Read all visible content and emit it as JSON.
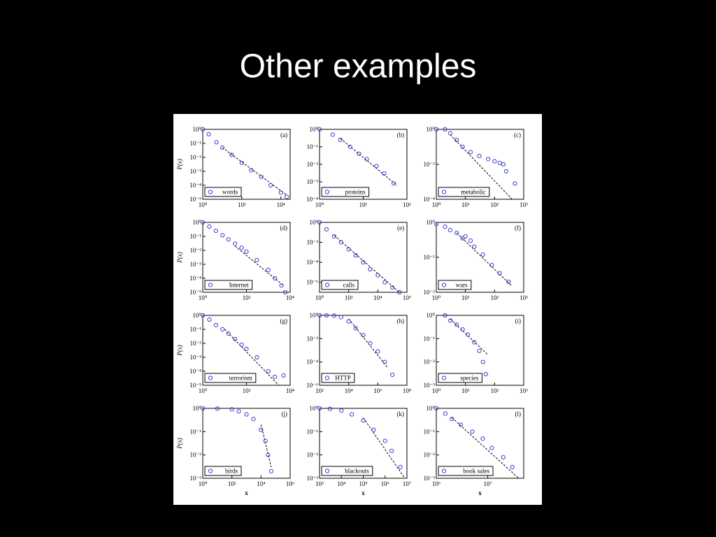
{
  "title": "Other examples",
  "chart_data": [
    {
      "type": "scatter",
      "label": "(a)",
      "ylabel": "P(x)",
      "log_x": true,
      "log_y": true,
      "xlim": [
        1,
        30000
      ],
      "xticks": [
        {
          "value": 1,
          "label": "10⁰"
        },
        {
          "value": 100,
          "label": "10²"
        },
        {
          "value": 10000,
          "label": "10⁴"
        }
      ],
      "ylim": [
        1e-05,
        1
      ],
      "yticks": [
        {
          "value": 1,
          "label": "10⁰"
        },
        {
          "value": 0.1,
          "label": "10⁻¹"
        },
        {
          "value": 0.01,
          "label": "10⁻²"
        },
        {
          "value": 0.001,
          "label": "10⁻³"
        },
        {
          "value": 0.0001,
          "label": "10⁻⁴"
        },
        {
          "value": 1e-05,
          "label": "10⁻⁵"
        }
      ],
      "series": [
        {
          "name": "words",
          "color": "#3c3cd8",
          "x": [
            1,
            2,
            5,
            10,
            30,
            100,
            300,
            1000,
            3000,
            10000,
            20000
          ],
          "values": [
            1,
            0.45,
            0.12,
            0.05,
            0.015,
            0.004,
            0.0012,
            0.0004,
            0.0001,
            3e-05,
            1.5e-05
          ]
        }
      ],
      "fit": {
        "x": [
          10,
          20000
        ],
        "values": [
          0.05,
          2e-05
        ]
      }
    },
    {
      "type": "scatter",
      "label": "(b)",
      "log_x": true,
      "log_y": true,
      "xlim": [
        1,
        100
      ],
      "xticks": [
        {
          "value": 1,
          "label": "10⁰"
        },
        {
          "value": 10,
          "label": "10¹"
        },
        {
          "value": 100,
          "label": "10²"
        }
      ],
      "ylim": [
        0.0001,
        1
      ],
      "yticks": [
        {
          "value": 1,
          "label": "10⁰"
        },
        {
          "value": 0.1,
          "label": "10⁻¹"
        },
        {
          "value": 0.01,
          "label": "10⁻²"
        },
        {
          "value": 0.001,
          "label": "10⁻³"
        },
        {
          "value": 0.0001,
          "label": "10⁻⁴"
        }
      ],
      "series": [
        {
          "name": "proteins",
          "color": "#3c3cd8",
          "x": [
            1,
            2,
            3,
            5,
            8,
            12,
            20,
            30,
            50
          ],
          "values": [
            1,
            0.5,
            0.25,
            0.1,
            0.04,
            0.02,
            0.008,
            0.003,
            0.0008
          ]
        }
      ],
      "fit": {
        "x": [
          3,
          60
        ],
        "values": [
          0.3,
          0.0006
        ]
      }
    },
    {
      "type": "scatter",
      "label": "(c)",
      "log_x": true,
      "log_y": true,
      "xlim": [
        1,
        1000
      ],
      "xticks": [
        {
          "value": 1,
          "label": "10⁰"
        },
        {
          "value": 10,
          "label": "10¹"
        },
        {
          "value": 100,
          "label": "10²"
        },
        {
          "value": 1000,
          "label": "10³"
        }
      ],
      "ylim": [
        0.0001,
        1
      ],
      "yticks": [
        {
          "value": 1,
          "label": "10⁰"
        },
        {
          "value": 0.01,
          "label": "10⁻²"
        },
        {
          "value": 0.0001,
          "label": "10⁻⁴"
        }
      ],
      "series": [
        {
          "name": "metabolic",
          "color": "#3c3cd8",
          "x": [
            1,
            2,
            3,
            5,
            8,
            15,
            30,
            60,
            100,
            150,
            200,
            250,
            500
          ],
          "values": [
            1,
            1,
            0.6,
            0.25,
            0.1,
            0.05,
            0.03,
            0.02,
            0.015,
            0.012,
            0.01,
            0.004,
            0.0008
          ]
        }
      ],
      "fit": {
        "x": [
          3,
          400
        ],
        "values": [
          0.5,
          0.0001
        ]
      }
    },
    {
      "type": "scatter",
      "label": "(d)",
      "ylabel": "P(x)",
      "log_x": true,
      "log_y": true,
      "xlim": [
        1,
        10000
      ],
      "xticks": [
        {
          "value": 1,
          "label": "10⁰"
        },
        {
          "value": 100,
          "label": "10²"
        },
        {
          "value": 10000,
          "label": "10⁴"
        }
      ],
      "ylim": [
        1e-05,
        1
      ],
      "yticks": [
        {
          "value": 1,
          "label": "10⁰"
        },
        {
          "value": 0.1,
          "label": "10⁻¹"
        },
        {
          "value": 0.01,
          "label": "10⁻²"
        },
        {
          "value": 0.001,
          "label": "10⁻³"
        },
        {
          "value": 0.0001,
          "label": "10⁻⁴"
        },
        {
          "value": 1e-05,
          "label": "10⁻⁵"
        }
      ],
      "series": [
        {
          "name": "Internet",
          "color": "#3c3cd8",
          "x": [
            1,
            2,
            4,
            8,
            15,
            30,
            60,
            100,
            300,
            1000,
            2000,
            4000,
            6000
          ],
          "values": [
            1,
            0.5,
            0.25,
            0.12,
            0.06,
            0.03,
            0.015,
            0.008,
            0.002,
            0.0004,
            0.0001,
            3e-05,
            1e-05
          ]
        }
      ],
      "fit": {
        "x": [
          30,
          5000
        ],
        "values": [
          0.02,
          3e-05
        ]
      }
    },
    {
      "type": "scatter",
      "label": "(e)",
      "log_x": true,
      "log_y": true,
      "xlim": [
        1,
        1000000
      ],
      "xticks": [
        {
          "value": 1,
          "label": "10⁰"
        },
        {
          "value": 100,
          "label": "10²"
        },
        {
          "value": 10000,
          "label": "10⁴"
        },
        {
          "value": 1000000,
          "label": "10⁶"
        }
      ],
      "ylim": [
        1e-07,
        1
      ],
      "yticks": [
        {
          "value": 1,
          "label": "10⁰"
        },
        {
          "value": 0.01,
          "label": "10⁻²"
        },
        {
          "value": 0.0001,
          "label": "10⁻⁴"
        },
        {
          "value": 1e-06,
          "label": "10⁻⁶"
        }
      ],
      "series": [
        {
          "name": "calls",
          "color": "#3c3cd8",
          "x": [
            1,
            3,
            10,
            30,
            100,
            300,
            1000,
            3000,
            10000,
            30000,
            100000,
            300000
          ],
          "values": [
            1,
            0.2,
            0.04,
            0.01,
            0.002,
            0.0005,
            0.0001,
            2e-05,
            5e-06,
            1e-06,
            3e-07,
            1e-07
          ]
        }
      ],
      "fit": {
        "x": [
          10,
          300000
        ],
        "values": [
          0.05,
          1e-07
        ]
      }
    },
    {
      "type": "scatter",
      "label": "(f)",
      "log_x": true,
      "log_y": true,
      "xlim": [
        1,
        1000
      ],
      "xticks": [
        {
          "value": 1,
          "label": "10⁰"
        },
        {
          "value": 10,
          "label": "10¹"
        },
        {
          "value": 100,
          "label": "10²"
        },
        {
          "value": 1000,
          "label": "10³"
        }
      ],
      "ylim": [
        0.01,
        1
      ],
      "yticks": [
        {
          "value": 1,
          "label": "10⁰"
        },
        {
          "value": 0.1,
          "label": "10⁻¹"
        },
        {
          "value": 0.01,
          "label": "10⁻²"
        }
      ],
      "series": [
        {
          "name": "wars",
          "color": "#3c3cd8",
          "x": [
            1,
            2,
            3,
            5,
            8,
            10,
            15,
            20,
            40,
            80,
            150,
            300
          ],
          "values": [
            0.9,
            0.75,
            0.6,
            0.5,
            0.35,
            0.4,
            0.3,
            0.2,
            0.12,
            0.06,
            0.035,
            0.02
          ]
        }
      ],
      "fit": {
        "x": [
          5,
          400
        ],
        "values": [
          0.5,
          0.015
        ]
      }
    },
    {
      "type": "scatter",
      "label": "(g)",
      "ylabel": "P(x)",
      "log_x": true,
      "log_y": true,
      "xlim": [
        1,
        10000
      ],
      "xticks": [
        {
          "value": 1,
          "label": "10⁰"
        },
        {
          "value": 100,
          "label": "10²"
        },
        {
          "value": 10000,
          "label": "10⁴"
        }
      ],
      "ylim": [
        1e-05,
        1
      ],
      "yticks": [
        {
          "value": 1,
          "label": "10⁰"
        },
        {
          "value": 0.1,
          "label": "10⁻¹"
        },
        {
          "value": 0.01,
          "label": "10⁻²"
        },
        {
          "value": 0.001,
          "label": "10⁻³"
        },
        {
          "value": 0.0001,
          "label": "10⁻⁴"
        },
        {
          "value": 1e-05,
          "label": "10⁻⁵"
        }
      ],
      "series": [
        {
          "name": "terrorism",
          "color": "#3c3cd8",
          "x": [
            1,
            2,
            4,
            8,
            15,
            30,
            60,
            100,
            300,
            1000,
            2000,
            5000
          ],
          "values": [
            1,
            0.5,
            0.2,
            0.1,
            0.05,
            0.02,
            0.008,
            0.004,
            0.001,
            0.0001,
            4e-05,
            5e-05
          ]
        }
      ],
      "fit": {
        "x": [
          10,
          3000
        ],
        "values": [
          0.1,
          1e-05
        ]
      }
    },
    {
      "type": "scatter",
      "label": "(h)",
      "log_x": true,
      "log_y": true,
      "xlim": [
        100,
        100000000
      ],
      "xticks": [
        {
          "value": 100,
          "label": "10²"
        },
        {
          "value": 10000,
          "label": "10⁴"
        },
        {
          "value": 1000000,
          "label": "10⁶"
        },
        {
          "value": 100000000,
          "label": "10⁸"
        }
      ],
      "ylim": [
        1e-06,
        1
      ],
      "yticks": [
        {
          "value": 1,
          "label": "10⁰"
        },
        {
          "value": 0.01,
          "label": "10⁻²"
        },
        {
          "value": 0.0001,
          "label": "10⁻⁴"
        },
        {
          "value": 1e-06,
          "label": "10⁻⁶"
        }
      ],
      "series": [
        {
          "name": "HTTP",
          "color": "#3c3cd8",
          "x": [
            100,
            300,
            1000,
            3000,
            10000,
            30000,
            100000,
            300000,
            1000000,
            3000000,
            10000000
          ],
          "values": [
            1,
            1,
            0.95,
            0.7,
            0.3,
            0.08,
            0.02,
            0.004,
            0.0008,
            0.0001,
            8e-06
          ]
        }
      ],
      "fit": {
        "x": [
          10000,
          5000000
        ],
        "values": [
          0.5,
          3e-05
        ]
      }
    },
    {
      "type": "scatter",
      "label": "(i)",
      "log_x": true,
      "log_y": true,
      "xlim": [
        1,
        1000
      ],
      "xticks": [
        {
          "value": 1,
          "label": "10⁰"
        },
        {
          "value": 10,
          "label": "10¹"
        },
        {
          "value": 100,
          "label": "10²"
        },
        {
          "value": 1000,
          "label": "10³"
        }
      ],
      "ylim": [
        0.001,
        1
      ],
      "yticks": [
        {
          "value": 1,
          "label": "10⁰"
        },
        {
          "value": 0.1,
          "label": "10⁻¹"
        },
        {
          "value": 0.01,
          "label": "10⁻²"
        },
        {
          "value": 0.001,
          "label": "10⁻³"
        }
      ],
      "series": [
        {
          "name": "species",
          "color": "#3c3cd8",
          "x": [
            2,
            3,
            5,
            8,
            12,
            20,
            30,
            40,
            50
          ],
          "values": [
            1,
            0.6,
            0.4,
            0.25,
            0.15,
            0.07,
            0.03,
            0.01,
            0.003
          ]
        }
      ],
      "fit": {
        "x": [
          3,
          60
        ],
        "values": [
          0.7,
          0.02
        ]
      }
    },
    {
      "type": "scatter",
      "label": "(j)",
      "ylabel": "P(x)",
      "xlabel": "x",
      "log_x": true,
      "log_y": true,
      "xlim": [
        1,
        1000000
      ],
      "xticks": [
        {
          "value": 1,
          "label": "10⁰"
        },
        {
          "value": 100,
          "label": "10²"
        },
        {
          "value": 10000,
          "label": "10⁴"
        },
        {
          "value": 1000000,
          "label": "10⁶"
        }
      ],
      "ylim": [
        0.001,
        1
      ],
      "yticks": [
        {
          "value": 1,
          "label": "10⁰"
        },
        {
          "value": 0.1,
          "label": "10⁻¹"
        },
        {
          "value": 0.01,
          "label": "10⁻²"
        },
        {
          "value": 0.001,
          "label": "10⁻³"
        }
      ],
      "series": [
        {
          "name": "birds",
          "color": "#3c3cd8",
          "x": [
            1,
            10,
            100,
            300,
            1000,
            3000,
            10000,
            20000,
            30000,
            50000
          ],
          "values": [
            1,
            0.98,
            0.9,
            0.75,
            0.55,
            0.35,
            0.12,
            0.04,
            0.01,
            0.002
          ]
        }
      ],
      "fit": {
        "x": [
          10000,
          50000
        ],
        "values": [
          0.2,
          0.003
        ]
      }
    },
    {
      "type": "scatter",
      "label": "(k)",
      "xlabel": "x",
      "log_x": true,
      "log_y": true,
      "xlim": [
        1000,
        10000000
      ],
      "xticks": [
        {
          "value": 1000,
          "label": "10³"
        },
        {
          "value": 10000,
          "label": "10⁴"
        },
        {
          "value": 100000,
          "label": "10⁵"
        },
        {
          "value": 1000000,
          "label": "10⁶"
        },
        {
          "value": 10000000,
          "label": "10⁷"
        }
      ],
      "ylim": [
        0.001,
        1
      ],
      "yticks": [
        {
          "value": 1,
          "label": "10⁰"
        },
        {
          "value": 0.1,
          "label": "10⁻¹"
        },
        {
          "value": 0.01,
          "label": "10⁻²"
        },
        {
          "value": 0.001,
          "label": "10⁻³"
        }
      ],
      "series": [
        {
          "name": "blackouts",
          "color": "#3c3cd8",
          "x": [
            1000,
            3000,
            10000,
            30000,
            100000,
            300000,
            1000000,
            2000000,
            5000000
          ],
          "values": [
            1,
            0.95,
            0.8,
            0.55,
            0.3,
            0.12,
            0.04,
            0.015,
            0.003
          ]
        }
      ],
      "fit": {
        "x": [
          100000,
          8000000
        ],
        "values": [
          0.4,
          0.001
        ]
      }
    },
    {
      "type": "scatter",
      "label": "(l)",
      "xlabel": "x",
      "log_x": true,
      "log_y": true,
      "xlim": [
        1000000,
        50000000
      ],
      "xticks": [
        {
          "value": 1000000,
          "label": "10⁶"
        },
        {
          "value": 10000000,
          "label": "10⁷"
        }
      ],
      "ylim": [
        0.001,
        1
      ],
      "yticks": [
        {
          "value": 1,
          "label": "10⁰"
        },
        {
          "value": 0.1,
          "label": "10⁻¹"
        },
        {
          "value": 0.01,
          "label": "10⁻²"
        },
        {
          "value": 0.001,
          "label": "10⁻³"
        }
      ],
      "series": [
        {
          "name": "book sales",
          "color": "#3c3cd8",
          "x": [
            1000000,
            1500000,
            2000000,
            3000000,
            5000000,
            8000000,
            12000000,
            20000000,
            30000000
          ],
          "values": [
            1,
            0.6,
            0.35,
            0.2,
            0.1,
            0.05,
            0.02,
            0.008,
            0.003
          ]
        }
      ],
      "fit": {
        "x": [
          2000000,
          40000000
        ],
        "values": [
          0.4,
          0.001
        ]
      }
    }
  ]
}
